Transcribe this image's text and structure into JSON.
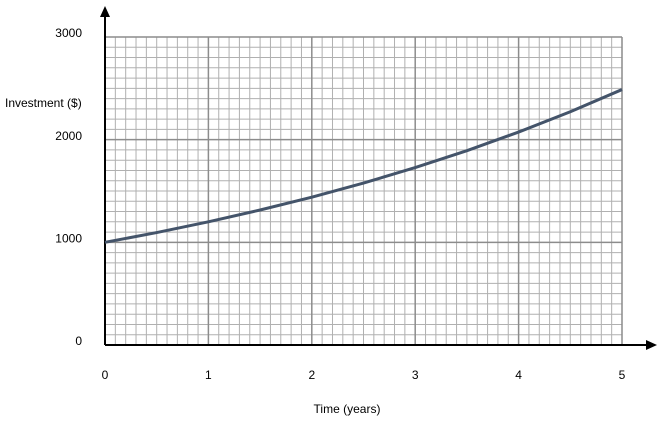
{
  "chart_data": {
    "type": "line",
    "x_label": "Time (years)",
    "y_label": "Investment ($)",
    "x": [
      0,
      0.5,
      1,
      1.5,
      2,
      2.5,
      3,
      3.5,
      4,
      4.5,
      5
    ],
    "values": [
      1000,
      1095,
      1200,
      1315,
      1440,
      1577,
      1728,
      1893,
      2074,
      2272,
      2488
    ],
    "color": "#44546a",
    "xlim": [
      0,
      5
    ],
    "xticks": [
      0,
      1,
      2,
      3,
      4,
      5
    ],
    "ylim": [
      0,
      3000
    ],
    "yticks": [
      0,
      1000,
      2000,
      3000
    ],
    "grid": true
  }
}
